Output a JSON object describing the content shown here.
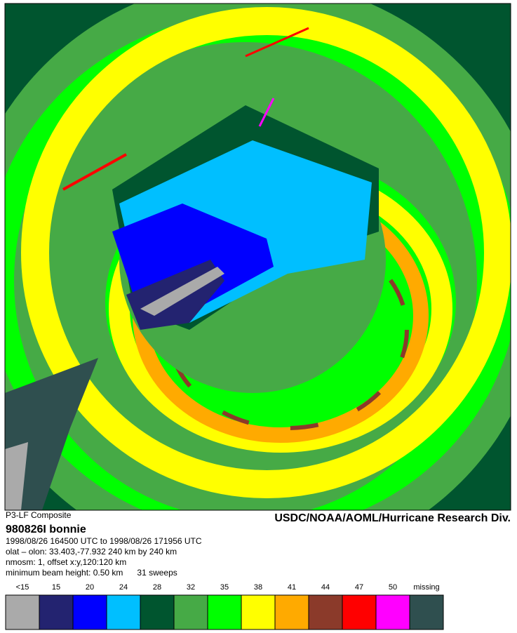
{
  "header": {
    "product": "P3-LF Composite",
    "flight": "980826I   bonnie",
    "agency": "USDC/NOAA/AOML/Hurricane Research Div."
  },
  "info": [
    "1998/08/26 164500 UTC to 1998/08/26 171956 UTC",
    "olat – olon: 33.403,-77.932  240 km by 240 km",
    "nmosm: 1, offset x:y,120:120 km",
    "minimum beam height: 0.50 km      31 sweeps"
  ],
  "legend": [
    {
      "label": "<15",
      "color": "#aaaaaa"
    },
    {
      "label": "15",
      "color": "#232370"
    },
    {
      "label": "20",
      "color": "#0000ff"
    },
    {
      "label": "24",
      "color": "#00bfff"
    },
    {
      "label": "28",
      "color": "#00552f"
    },
    {
      "label": "32",
      "color": "#46aa46"
    },
    {
      "label": "35",
      "color": "#00ff00"
    },
    {
      "label": "38",
      "color": "#ffff00"
    },
    {
      "label": "41",
      "color": "#ffaa00"
    },
    {
      "label": "44",
      "color": "#8b3a2a"
    },
    {
      "label": "47",
      "color": "#ff0000"
    },
    {
      "label": "50",
      "color": "#ff00ff"
    },
    {
      "label": "missing",
      "color": "#2f4f4f"
    }
  ]
}
